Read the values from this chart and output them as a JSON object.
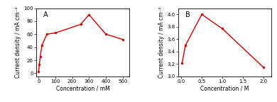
{
  "panel_A": {
    "x": [
      1,
      5,
      10,
      20,
      50,
      100,
      250,
      300,
      400,
      500
    ],
    "y": [
      3,
      14,
      25,
      43,
      60,
      62,
      75,
      90,
      60,
      52
    ],
    "xlabel": "Concentration / mM",
    "ylabel": "Current density / mA cm⁻²",
    "label": "A",
    "xlim": [
      -15,
      540
    ],
    "ylim": [
      -5,
      100
    ],
    "xticks": [
      0,
      100,
      200,
      300,
      400,
      500
    ],
    "yticks": [
      0,
      20,
      40,
      60,
      80,
      100
    ]
  },
  "panel_B": {
    "x": [
      0.02,
      0.1,
      0.5,
      1.0,
      2.0
    ],
    "y": [
      3.22,
      3.5,
      4.0,
      3.77,
      3.15
    ],
    "xlabel": "Concentration / M",
    "ylabel": "Current density / mA cm⁻²",
    "label": "B",
    "xlim": [
      -0.08,
      2.2
    ],
    "ylim": [
      3.0,
      4.1
    ],
    "xticks": [
      0.0,
      0.5,
      1.0,
      1.5,
      2.0
    ],
    "yticks": [
      3.0,
      3.2,
      3.4,
      3.6,
      3.8,
      4.0
    ]
  },
  "line_color": "#cc0000",
  "marker": "o",
  "marker_size": 2.0,
  "line_width": 1.0,
  "panel_label_fontsize": 7.0,
  "axis_label_fontsize": 5.5,
  "tick_fontsize": 5.0
}
